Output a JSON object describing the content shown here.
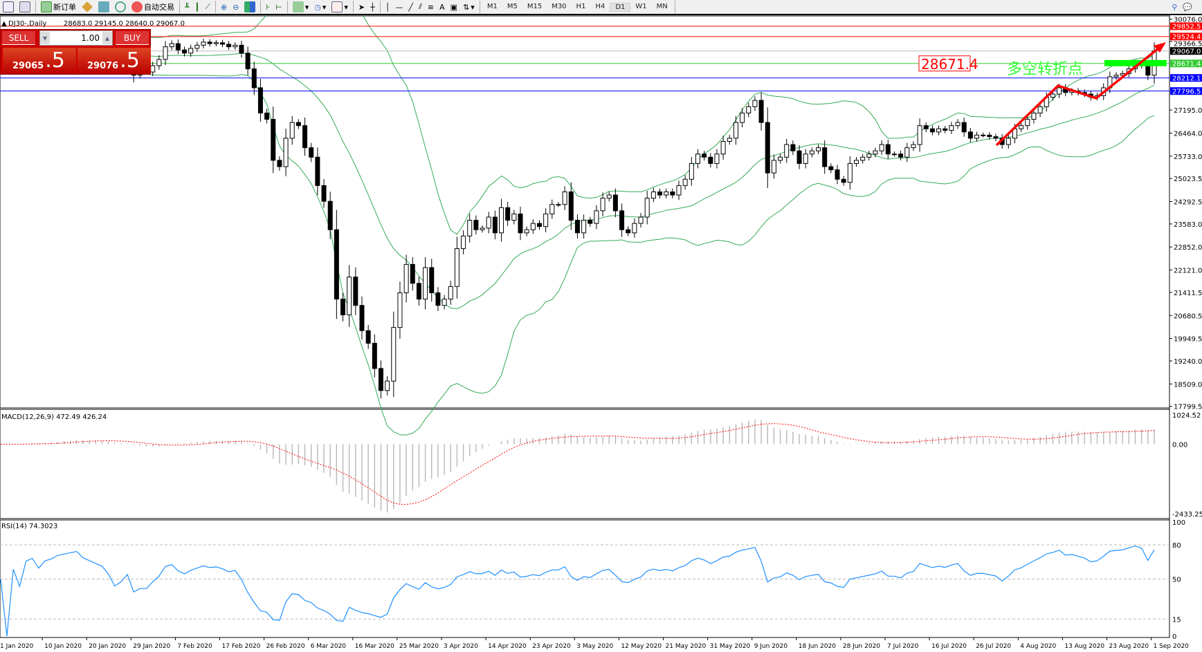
{
  "toolbar": {
    "new_order": "新订单",
    "auto_trading": "自动交易",
    "timeframes": [
      "M1",
      "M5",
      "M15",
      "M30",
      "H1",
      "H4",
      "D1",
      "W1",
      "MN"
    ],
    "active_timeframe": "D1",
    "icons": [
      "new-chart-icon",
      "zoom-icon",
      "new-order-icon",
      "market-watch-icon",
      "terminal-icon",
      "signals-icon",
      "auto-trading-icon",
      "bar-chart-icon",
      "candlestick-icon",
      "line-chart-icon",
      "zoom-in-icon",
      "zoom-out-icon",
      "tile-windows-icon",
      "chart-shift-icon",
      "autoscroll-icon",
      "indicators-icon",
      "periods-icon",
      "templates-icon",
      "cursor-icon",
      "crosshair-icon",
      "vertical-line-icon",
      "horizontal-line-icon",
      "trendline-icon",
      "equidistant-channel-icon",
      "fibonacci-icon",
      "text-icon",
      "text-label-icon",
      "arrows-icon",
      "search-icon",
      "chat-icon"
    ]
  },
  "chart_header": {
    "symbol": "DJ30-,Daily",
    "ohlc": "28683.0 29145.0 28640.0 29067.0"
  },
  "trade_panel": {
    "sell_label": "SELL",
    "buy_label": "BUY",
    "lot": "1.00",
    "sell_price_main": "29065",
    "sell_price_pip": ".5",
    "buy_price_main": "29076",
    "buy_price_pip": ".5"
  },
  "price_axis": {
    "ticks": [
      "30076.0",
      "29366.5",
      "27195.0",
      "26464.0",
      "25733.0",
      "25023.5",
      "24292.5",
      "23583.0",
      "22852.0",
      "22121.0",
      "21411.5",
      "20680.5",
      "19949.5",
      "19240.0",
      "18509.0",
      "17799.5"
    ],
    "range": [
      17799.5,
      30076.0
    ]
  },
  "levels": [
    {
      "value": 29852.5,
      "label": "29852.5",
      "color": "#ff0000"
    },
    {
      "value": 29524.4,
      "label": "29524.4",
      "color": "#ff0000"
    },
    {
      "value": 29067.0,
      "label": "29067.0",
      "color": "#000000"
    },
    {
      "value": 28671.4,
      "label": "28671.4",
      "color": "#33cc33"
    },
    {
      "value": 28212.1,
      "label": "28212.1",
      "color": "#0000ff"
    },
    {
      "value": 27796.5,
      "label": "27796.5",
      "color": "#0000ff"
    }
  ],
  "annotations": {
    "price_label": "28671.4",
    "pivot_text": "多空转折点"
  },
  "macd": {
    "title": "MACD(12,26,9) 472.49 426.24",
    "ticks": [
      "1024.52",
      "0.00",
      "-2433.25"
    ],
    "range": [
      -2433.25,
      1024.52
    ]
  },
  "rsi": {
    "title": "RSI(14) 74.3023",
    "ticks": [
      "100",
      "80",
      "50",
      "15",
      "0"
    ]
  },
  "date_axis": [
    "1 Jan 2020",
    "10 Jan 2020",
    "20 Jan 2020",
    "29 Jan 2020",
    "7 Feb 2020",
    "17 Feb 2020",
    "26 Feb 2020",
    "6 Mar 2020",
    "16 Mar 2020",
    "25 Mar 2020",
    "3 Apr 2020",
    "14 Apr 2020",
    "23 Apr 2020",
    "3 May 2020",
    "12 May 2020",
    "21 May 2020",
    "31 May 2020",
    "9 Jun 2020",
    "18 Jun 2020",
    "28 Jun 2020",
    "7 Jul 2020",
    "16 Jul 2020",
    "26 Jul 2020",
    "4 Aug 2020",
    "13 Aug 2020",
    "23 Aug 2020",
    "1 Sep 2020"
  ],
  "closes": [
    28700,
    28580,
    28750,
    28650,
    28900,
    28950,
    28850,
    29000,
    29050,
    29150,
    29200,
    29250,
    29300,
    29200,
    29150,
    29100,
    29050,
    28900,
    28600,
    28700,
    28900,
    28300,
    28400,
    28400,
    28600,
    28800,
    29200,
    29300,
    29100,
    29000,
    29150,
    29250,
    29350,
    29300,
    29330,
    29280,
    29200,
    29250,
    29000,
    28500,
    27900,
    27100,
    26900,
    25600,
    25400,
    26300,
    26800,
    26700,
    26000,
    25700,
    24800,
    24300,
    23400,
    21200,
    20700,
    21900,
    21000,
    20200,
    19800,
    19000,
    18300,
    18600,
    20300,
    21400,
    22300,
    21700,
    21200,
    22200,
    21400,
    21000,
    21200,
    21600,
    22800,
    23200,
    23700,
    23400,
    23450,
    23800,
    23300,
    24100,
    23700,
    23900,
    23300,
    23400,
    23600,
    23500,
    23900,
    24200,
    24200,
    24600,
    23700,
    23300,
    23700,
    23600,
    24000,
    24400,
    24500,
    24000,
    23400,
    23300,
    23600,
    23800,
    24400,
    24600,
    24500,
    24600,
    24500,
    24800,
    25000,
    25500,
    25800,
    25700,
    25500,
    25800,
    26200,
    26300,
    26800,
    27100,
    27300,
    27500,
    26800,
    25200,
    25600,
    25700,
    26100,
    25900,
    25500,
    25800,
    25900,
    26000,
    25400,
    25300,
    25000,
    24900,
    25500,
    25600,
    25700,
    25800,
    25900,
    26100,
    25800,
    25800,
    25700,
    26000,
    26100,
    26700,
    26600,
    26500,
    26600,
    26550,
    26700,
    26800,
    26500,
    26300,
    26400,
    26400,
    26350,
    26300,
    26100,
    26300,
    26600,
    26700,
    26900,
    27100,
    27300,
    27600,
    27700,
    27900,
    27750,
    27800,
    27750,
    27700,
    27600,
    27650,
    27900,
    28250,
    28300,
    28350,
    28500,
    28650,
    28600,
    28300,
    29067
  ],
  "colors": {
    "bands": "#33aa55",
    "macd_signal": "#ff0000",
    "macd_hist": "#bbbbbb",
    "rsi": "#1e90ff",
    "arrow": "#ff0000",
    "pivot_text": "#33ff33",
    "pivot_bar": "#00ff00"
  }
}
